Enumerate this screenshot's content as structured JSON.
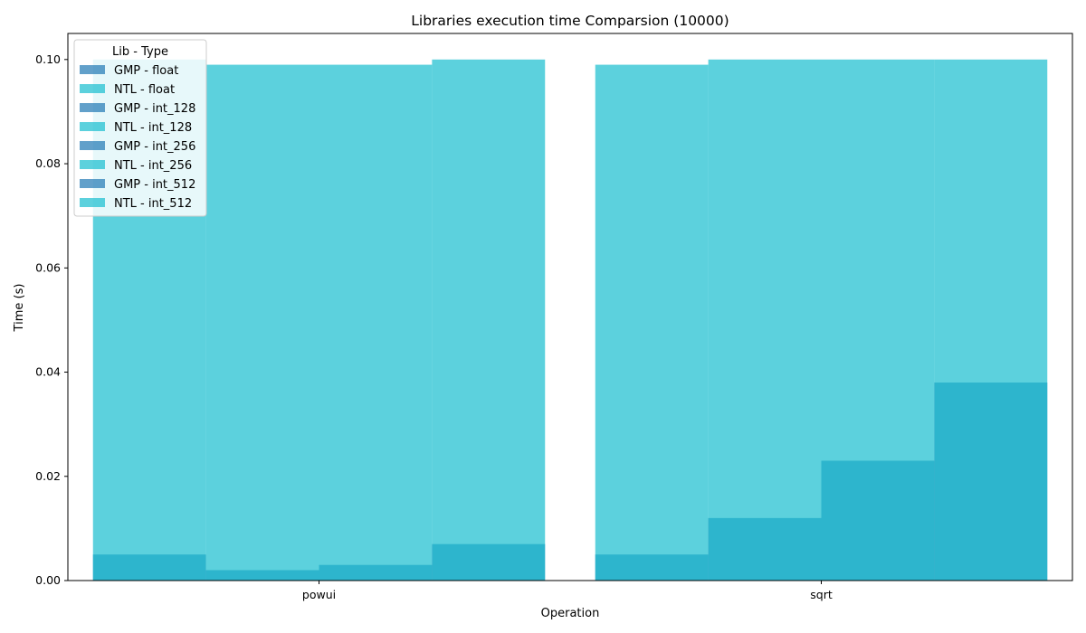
{
  "chart_data": {
    "type": "bar",
    "title": "Libraries execution time Comparsion (10000)",
    "xlabel": "Operation",
    "ylabel": "Time (s)",
    "categories": [
      "powui",
      "sqrt"
    ],
    "ylim": [
      0,
      0.105
    ],
    "yticks": [
      "0.00",
      "0.02",
      "0.04",
      "0.06",
      "0.08",
      "0.10"
    ],
    "legend": {
      "title": "Lib - Type",
      "placement": "top-left"
    },
    "grid": false,
    "series": [
      {
        "name": "GMP - float",
        "values": [
          0.005,
          0.005
        ],
        "color": "#1f77b4"
      },
      {
        "name": "NTL - float",
        "values": [
          0.1,
          0.099
        ],
        "color": "#17becf"
      },
      {
        "name": "GMP - int_128",
        "values": [
          0.002,
          0.012
        ],
        "color": "#1f77b4"
      },
      {
        "name": "NTL - int_128",
        "values": [
          0.099,
          0.1
        ],
        "color": "#17becf"
      },
      {
        "name": "GMP - int_256",
        "values": [
          0.003,
          0.023
        ],
        "color": "#1f77b4"
      },
      {
        "name": "NTL - int_256",
        "values": [
          0.099,
          0.1
        ],
        "color": "#17becf"
      },
      {
        "name": "GMP - int_512",
        "values": [
          0.007,
          0.038
        ],
        "color": "#1f77b4"
      },
      {
        "name": "NTL - int_512",
        "values": [
          0.1,
          0.1
        ],
        "color": "#17becf"
      }
    ],
    "bar_alpha": 0.7
  }
}
